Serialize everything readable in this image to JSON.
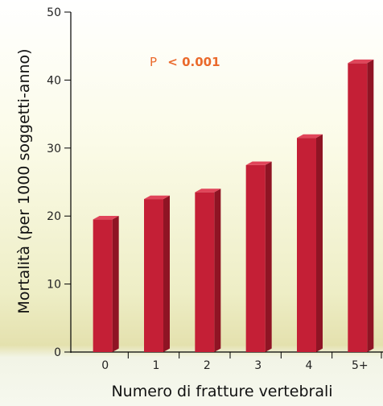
{
  "chart_data": {
    "type": "bar",
    "categories": [
      "0",
      "1",
      "2",
      "3",
      "4",
      "5+"
    ],
    "values": [
      19.5,
      22.5,
      23.5,
      27.5,
      31.5,
      42.5
    ],
    "xlabel": "Numero di fratture vertebrali",
    "ylabel": "Mortalità (per 1000 soggetti-anno)",
    "ylim": [
      0,
      50
    ],
    "yticks": [
      "0",
      "10",
      "20",
      "30",
      "40",
      "50"
    ],
    "annotation": {
      "prefix": "P",
      "text": "< 0.001"
    },
    "grid": false,
    "colors": {
      "bar_front": "#c41f36",
      "bar_side": "#8f1424",
      "bar_top": "#e0455a",
      "annotation": "#ea6a2c"
    }
  }
}
